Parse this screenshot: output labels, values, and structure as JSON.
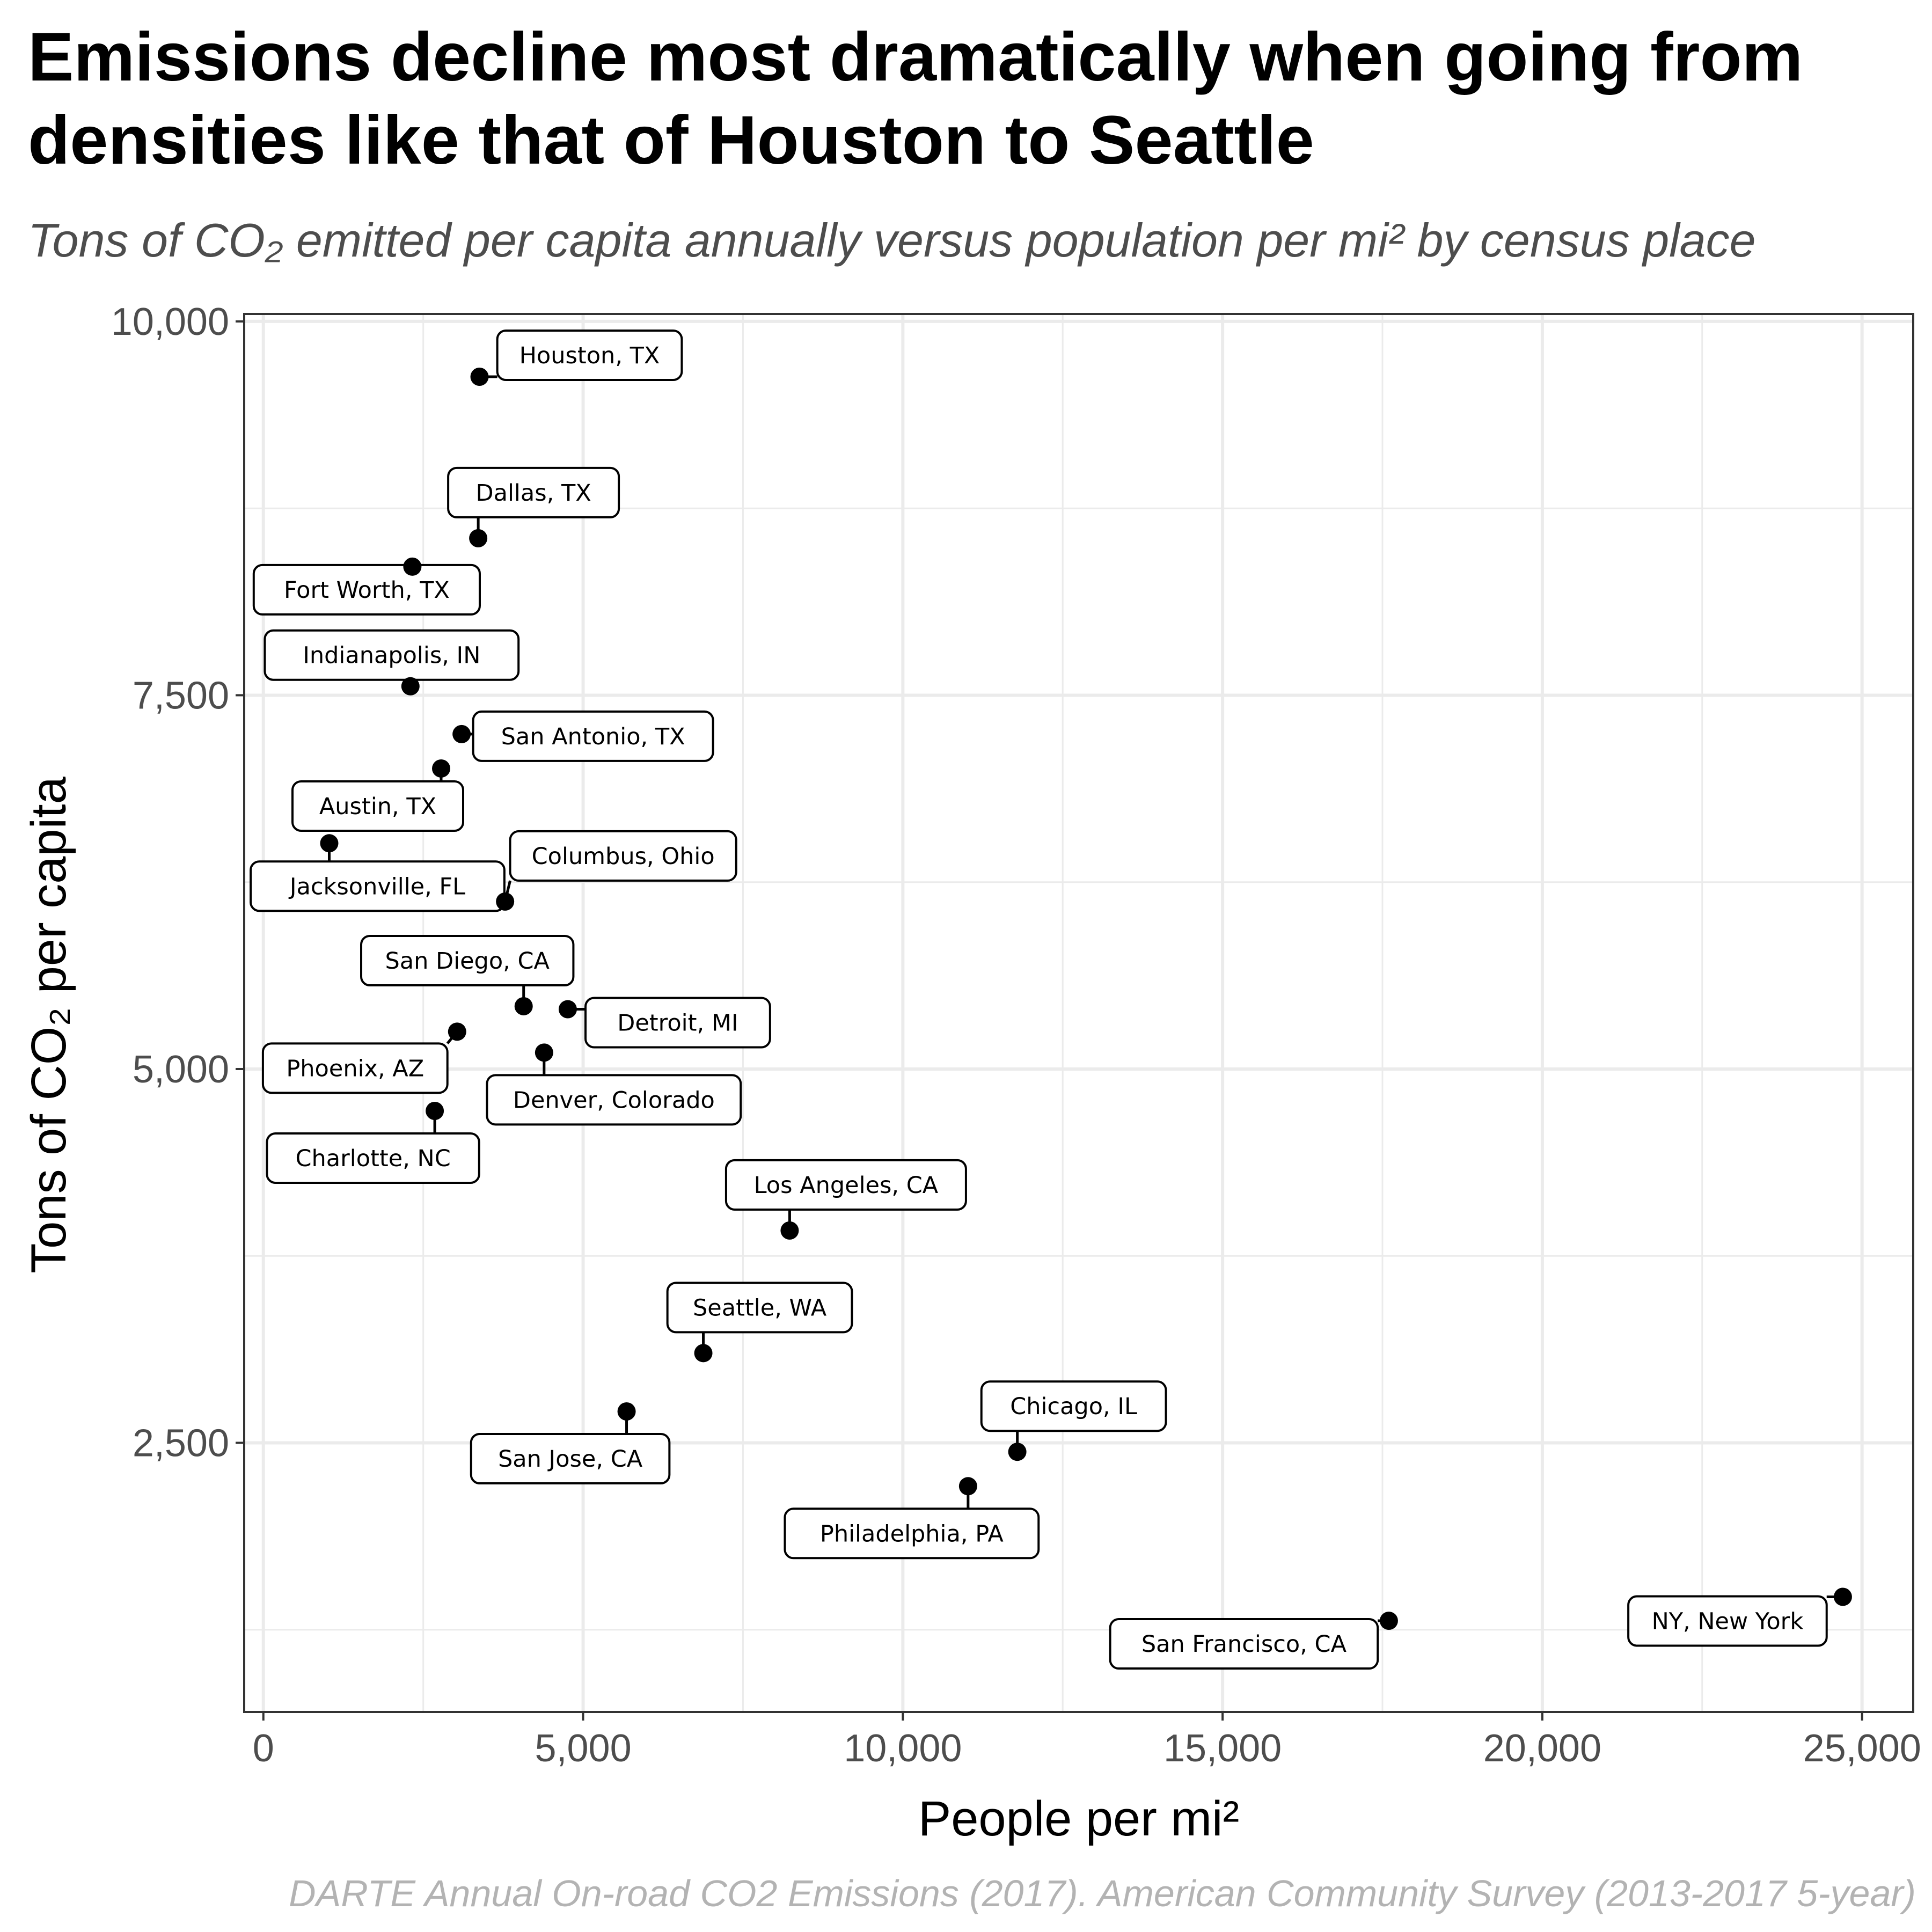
{
  "chart_data": {
    "type": "scatter",
    "title": "Emissions decline most dramatically when going from densities like that of Houston to Seattle",
    "subtitle": "Tons of CO₂ emitted per capita annually versus population per mi² by census place",
    "xlabel": "People per mi²",
    "ylabel": "Tons of CO₂ per capita",
    "caption": "DARTE Annual On-road CO2 Emissions (2017). American Community Survey (2013-2017 5-year)",
    "xlim": [
      -300,
      25800
    ],
    "ylim": [
      700,
      10050
    ],
    "x_ticks": [
      0,
      5000,
      10000,
      15000,
      20000,
      25000
    ],
    "x_tick_labels": [
      "0",
      "5,000",
      "10,000",
      "15,000",
      "20,000",
      "25,000"
    ],
    "y_ticks": [
      2500,
      5000,
      7500,
      10000
    ],
    "y_tick_labels": [
      "2,500",
      "5,000",
      "7,500",
      "10,000"
    ],
    "grid": true,
    "point_color": "#000000",
    "points": [
      {
        "label": "Houston, TX",
        "x": 3380,
        "y": 9630
      },
      {
        "label": "Dallas, TX",
        "x": 3360,
        "y": 8550
      },
      {
        "label": "Fort Worth, TX",
        "x": 2330,
        "y": 8360
      },
      {
        "label": "Indianapolis, IN",
        "x": 2300,
        "y": 7560
      },
      {
        "label": "San Antonio, TX",
        "x": 3100,
        "y": 7240
      },
      {
        "label": "Austin, TX",
        "x": 2780,
        "y": 7010
      },
      {
        "label": "Jacksonville, FL",
        "x": 1030,
        "y": 6510
      },
      {
        "label": "Columbus, Ohio",
        "x": 3780,
        "y": 6120
      },
      {
        "label": "San Diego, CA",
        "x": 4070,
        "y": 5420
      },
      {
        "label": "Detroit, MI",
        "x": 4760,
        "y": 5400
      },
      {
        "label": "Phoenix, AZ",
        "x": 3030,
        "y": 5250
      },
      {
        "label": "Denver, Colorado",
        "x": 4390,
        "y": 5110
      },
      {
        "label": "Charlotte, NC",
        "x": 2680,
        "y": 4720
      },
      {
        "label": "Los Angeles, CA",
        "x": 8230,
        "y": 3920
      },
      {
        "label": "Seattle, WA",
        "x": 6880,
        "y": 3100
      },
      {
        "label": "San Jose, CA",
        "x": 5680,
        "y": 2710
      },
      {
        "label": "Chicago, IL",
        "x": 11790,
        "y": 2440
      },
      {
        "label": "Philadelphia, PA",
        "x": 11020,
        "y": 2210
      },
      {
        "label": "San Francisco, CA",
        "x": 17600,
        "y": 1310
      },
      {
        "label": "NY, New York",
        "x": 24700,
        "y": 1470
      }
    ]
  }
}
